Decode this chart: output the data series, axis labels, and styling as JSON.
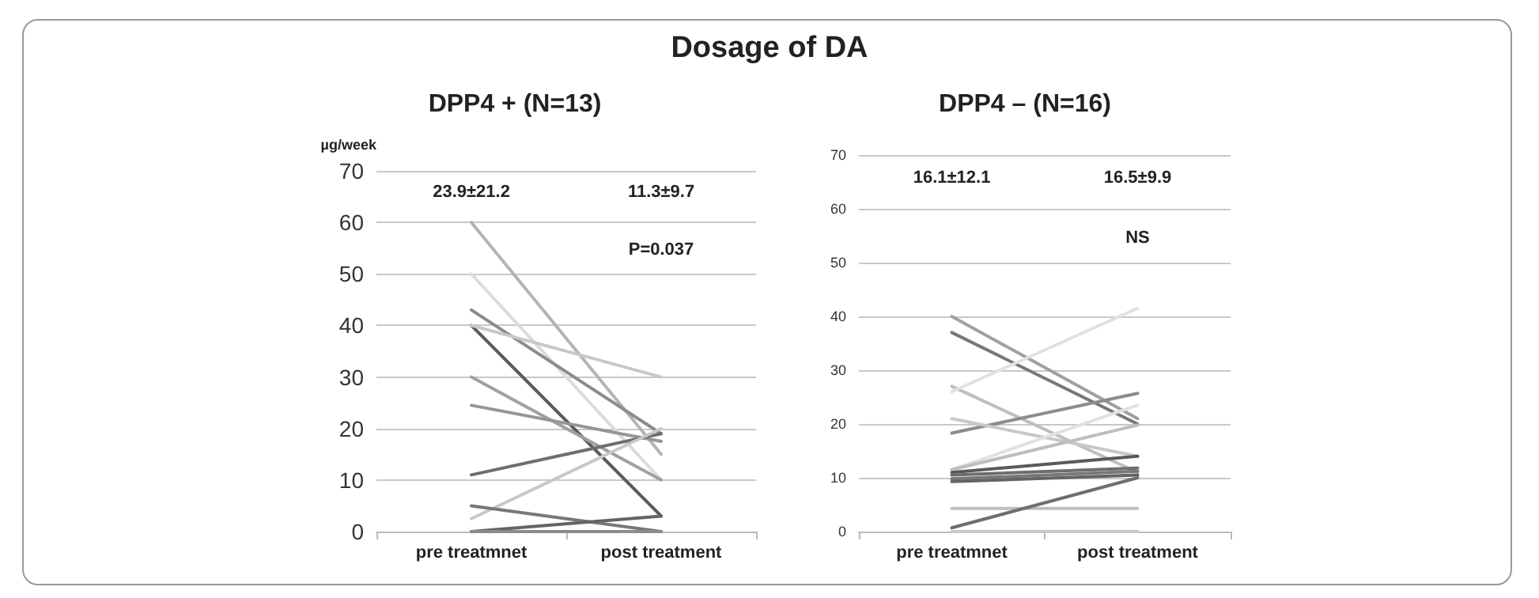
{
  "chart_data": [
    {
      "type": "line",
      "title": "DPP4 + (N=13)",
      "ylabel": "µg/week",
      "categories": [
        "pre treatmnet",
        "post treatment"
      ],
      "ylim": [
        0,
        70
      ],
      "yticks": [
        0,
        10,
        20,
        30,
        40,
        50,
        60,
        70
      ],
      "grid": "y",
      "marker": "none",
      "line_style": "solid",
      "annotations": [
        "Dosage of DA",
        "23.9±21.2",
        "11.3±9.7",
        "P=0.037"
      ],
      "series": [
        {
          "color": "#b4b4b4",
          "values": [
            60,
            15
          ]
        },
        {
          "color": "#dcdcdc",
          "values": [
            50,
            10
          ]
        },
        {
          "color": "#8c8c8c",
          "values": [
            43,
            19
          ]
        },
        {
          "color": "#5a5a5a",
          "values": [
            40,
            3
          ]
        },
        {
          "color": "#c8c8c8",
          "values": [
            40,
            30
          ]
        },
        {
          "color": "#a0a0a0",
          "values": [
            30,
            10
          ]
        },
        {
          "color": "#969696",
          "values": [
            24.5,
            17.5
          ]
        },
        {
          "color": "#6e6e6e",
          "values": [
            11,
            19
          ]
        },
        {
          "color": "#c8c8c8",
          "values": [
            2.5,
            20
          ]
        },
        {
          "color": "#787878",
          "values": [
            5,
            0
          ]
        },
        {
          "color": "#646464",
          "values": [
            0,
            3
          ]
        },
        {
          "color": "#8c8c8c",
          "values": [
            0,
            0
          ]
        }
      ]
    },
    {
      "type": "line",
      "title": "DPP4 – (N=16)",
      "categories": [
        "pre treatmnet",
        "post treatment"
      ],
      "ylim": [
        0,
        70
      ],
      "yticks": [
        0,
        10,
        20,
        30,
        40,
        50,
        60,
        70
      ],
      "grid": "y",
      "marker": "none",
      "line_style": "solid",
      "annotations": [
        "16.1±12.1",
        "16.5±9.9",
        "NS"
      ],
      "series": [
        {
          "color": "#a0a0a0",
          "values": [
            40,
            21
          ]
        },
        {
          "color": "#787878",
          "values": [
            37,
            20
          ]
        },
        {
          "color": "#bebebe",
          "values": [
            27,
            11
          ]
        },
        {
          "color": "#e1e1e1",
          "values": [
            26,
            41.5
          ]
        },
        {
          "color": "#8c8c8c",
          "values": [
            18.3,
            25.7
          ]
        },
        {
          "color": "#c8c8c8",
          "values": [
            21,
            14
          ]
        },
        {
          "color": "#e1e1e1",
          "values": [
            11.5,
            23.5
          ]
        },
        {
          "color": "#bebebe",
          "values": [
            11.5,
            19.8
          ]
        },
        {
          "color": "#5a5a5a",
          "values": [
            11,
            14
          ]
        },
        {
          "color": "#6e6e6e",
          "values": [
            10.5,
            11.8
          ]
        },
        {
          "color": "#787878",
          "values": [
            9.8,
            11.2
          ]
        },
        {
          "color": "#646464",
          "values": [
            9.3,
            10.5
          ]
        },
        {
          "color": "#bebebe",
          "values": [
            4.3,
            4.3
          ]
        },
        {
          "color": "#6e6e6e",
          "values": [
            0.7,
            10
          ]
        },
        {
          "color": "#c8c8c8",
          "values": [
            0,
            0
          ]
        }
      ]
    }
  ]
}
